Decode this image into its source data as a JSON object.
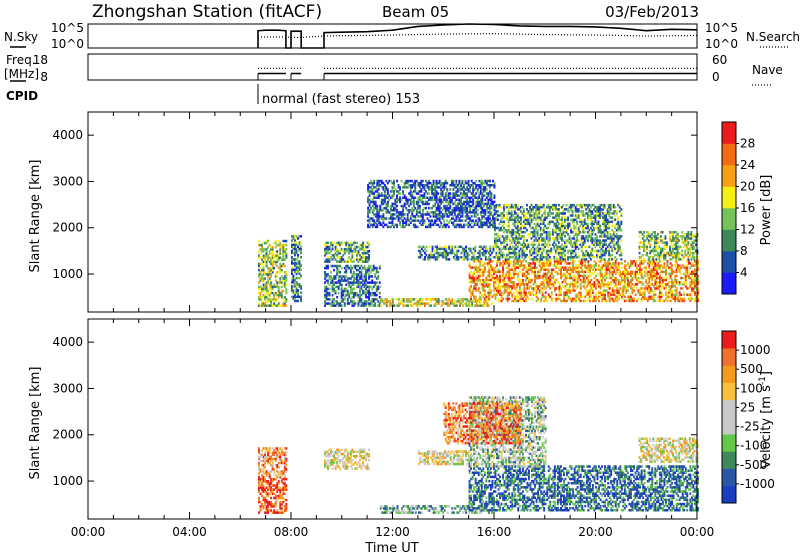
{
  "header": {
    "title": "Zhongshan Station (fitACF)",
    "beam": "Beam 05",
    "date": "03/Feb/2013"
  },
  "params": {
    "nsky_label": "N.Sky",
    "nsky_ticks": [
      "10^5",
      "10^0"
    ],
    "nsearch_label": "N.Search",
    "nsearch_ticks": [
      "10^5",
      "10^0"
    ],
    "freq_label": "Freq.",
    "freq_unit": "[MHz]",
    "freq_ticks": [
      "18",
      "8"
    ],
    "nave_label": "Nave",
    "nave_ticks": [
      "60",
      "0"
    ],
    "cpid_label": "CPID",
    "cpid_text": "normal (fast stereo) 153"
  },
  "colors": {
    "power": [
      "#1b1bf5",
      "#1d4fa6",
      "#3c8a5a",
      "#76c25a",
      "#f6ee14",
      "#f6a114",
      "#f36b12",
      "#ec1c1c"
    ],
    "velocity": [
      "#ec1c1c",
      "#f07030",
      "#f59a1c",
      "#f7c23a",
      "#c8c8c8",
      "#c8c8c8",
      "#63c74a",
      "#3c8a5a",
      "#2b56a8",
      "#1b3ec0"
    ],
    "frame": "#000000"
  },
  "chart_data": [
    {
      "type": "line",
      "panel": "N.Sky / N.Search",
      "x_unit": "hours UT",
      "series": [
        {
          "name": "N.Sky",
          "style": "solid",
          "x": [
            6.7,
            6.7,
            7.0,
            7.5,
            7.8,
            7.8,
            8.0,
            8.0,
            8.4,
            8.4,
            9.3,
            9.3,
            10,
            11,
            12,
            13,
            14,
            15,
            16,
            17,
            18,
            19,
            20,
            21,
            22,
            23,
            24
          ],
          "y": [
            0,
            3.6,
            3.7,
            3.7,
            3.6,
            0,
            0,
            3.5,
            3.5,
            0,
            0,
            3.2,
            3.3,
            3.4,
            3.7,
            4.5,
            4.8,
            5.0,
            4.9,
            4.6,
            4.5,
            4.5,
            4.4,
            4.1,
            3.6,
            3.9,
            3.8
          ]
        },
        {
          "name": "N.Search",
          "style": "dotted",
          "x": [
            6.7,
            7.8,
            8.0,
            8.4,
            9.3,
            12,
            14,
            16,
            18,
            20,
            22,
            24
          ],
          "y": [
            2.3,
            2.3,
            2.2,
            2.2,
            2.5,
            2.7,
            2.9,
            3.0,
            2.8,
            2.7,
            2.5,
            2.6
          ]
        }
      ],
      "y_axis_left": "log10 N.Sky (0 to 5)",
      "y_axis_right": "log10 N.Search (0 to 5)"
    },
    {
      "type": "line",
      "panel": "Freq. / Nave",
      "series": [
        {
          "name": "Freq.",
          "style": "solid",
          "x": [
            6.7,
            7.8,
            8.0,
            8.4,
            9.3,
            24
          ],
          "y": [
            10.5,
            10.5,
            10.5,
            10.5,
            10.5,
            10.5
          ]
        },
        {
          "name": "Nave",
          "style": "dotted",
          "x": [
            6.7,
            7.8,
            8.0,
            8.4,
            9.3,
            24
          ],
          "y": [
            27,
            27,
            27,
            27,
            27,
            27
          ]
        }
      ],
      "ylim_left": [
        8,
        18
      ],
      "ylim_right": [
        0,
        60
      ]
    },
    {
      "type": "heatmap",
      "title": "",
      "xlabel": "",
      "ylabel": "Slant Range [km]",
      "xlim": [
        0,
        24
      ],
      "ylim": [
        180,
        4500
      ],
      "y_ticks": [
        1000,
        2000,
        3000,
        4000
      ],
      "colorbar_label": "Power [dB]",
      "colorbar_ticks": [
        "4",
        "8",
        "12",
        "16",
        "20",
        "24",
        "28"
      ],
      "colorbar_range": [
        0,
        32
      ],
      "regions": [
        {
          "t": [
            6.7,
            7.8
          ],
          "r": [
            300,
            1700
          ],
          "level": 0.45
        },
        {
          "t": [
            8.0,
            8.4
          ],
          "r": [
            400,
            1800
          ],
          "level": 0.3
        },
        {
          "t": [
            9.3,
            11.1
          ],
          "r": [
            1250,
            1700
          ],
          "level": 0.35
        },
        {
          "t": [
            9.3,
            11.5
          ],
          "r": [
            300,
            1200
          ],
          "level": 0.25
        },
        {
          "t": [
            11.5,
            15.9
          ],
          "r": [
            300,
            450
          ],
          "level": 0.55
        },
        {
          "t": [
            13.0,
            16.0
          ],
          "r": [
            1300,
            1600
          ],
          "level": 0.3
        },
        {
          "t": [
            15.0,
            24.0
          ],
          "r": [
            400,
            1300
          ],
          "level": 0.7
        },
        {
          "t": [
            16.0,
            21.0
          ],
          "r": [
            1300,
            2500
          ],
          "level": 0.35
        },
        {
          "t": [
            21.7,
            24.0
          ],
          "r": [
            1300,
            1900
          ],
          "level": 0.45
        },
        {
          "t": [
            11.0,
            16.0
          ],
          "r": [
            2000,
            3000
          ],
          "level": 0.2
        }
      ]
    },
    {
      "type": "heatmap",
      "title": "",
      "xlabel": "Time UT",
      "ylabel": "Slant Range [km]",
      "xlim": [
        0,
        24
      ],
      "ylim": [
        180,
        4500
      ],
      "x_ticks": [
        "00:00",
        "04:00",
        "08:00",
        "12:00",
        "16:00",
        "20:00",
        "00:00"
      ],
      "y_ticks": [
        1000,
        2000,
        3000,
        4000
      ],
      "colorbar_label": "Velocity [m s-1]",
      "colorbar_ticks": [
        "1000",
        "500",
        "100",
        "25",
        "-25",
        "-100",
        "-500",
        "-1000"
      ],
      "colorbar_range": [
        -1250,
        1250
      ],
      "regions": [
        {
          "t": [
            6.7,
            7.8
          ],
          "r": [
            300,
            1100
          ],
          "level": 0.1
        },
        {
          "t": [
            6.7,
            7.8
          ],
          "r": [
            1100,
            1700
          ],
          "level": 0.25
        },
        {
          "t": [
            9.3,
            11.1
          ],
          "r": [
            1250,
            1700
          ],
          "level": 0.45
        },
        {
          "t": [
            11.5,
            15.9
          ],
          "r": [
            300,
            450
          ],
          "level": 0.65
        },
        {
          "t": [
            13.0,
            15.0
          ],
          "r": [
            1350,
            1650
          ],
          "level": 0.45
        },
        {
          "t": [
            15.0,
            24.0
          ],
          "r": [
            350,
            1300
          ],
          "level": 0.85
        },
        {
          "t": [
            15.0,
            18.0
          ],
          "r": [
            1300,
            2800
          ],
          "level": 0.6
        },
        {
          "t": [
            21.7,
            24.0
          ],
          "r": [
            1400,
            1900
          ],
          "level": 0.45
        },
        {
          "t": [
            14.0,
            17.0
          ],
          "r": [
            1800,
            2700
          ],
          "level": 0.2
        }
      ]
    }
  ]
}
